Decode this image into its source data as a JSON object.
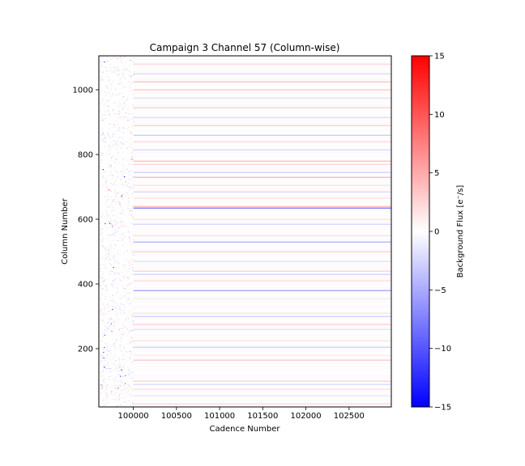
{
  "chart_data": {
    "type": "heatmap",
    "title": "Campaign 3 Channel 57 (Column-wise)",
    "xlabel": "Cadence Number",
    "ylabel": "Column Number",
    "xlim": [
      99600,
      102990
    ],
    "ylim": [
      20,
      1105
    ],
    "xticks": [
      100000,
      100500,
      101000,
      101500,
      102000,
      102500
    ],
    "yticks": [
      200,
      400,
      600,
      800,
      1000
    ],
    "noisy_segment_x": [
      99600,
      100000
    ],
    "colorbar": {
      "label": "Background Flux [e$^-$/s]",
      "label_display": "Background Flux [e⁻/s]",
      "range": [
        -15,
        15
      ],
      "ticks": [
        -15,
        -10,
        -5,
        0,
        5,
        10,
        15
      ],
      "colormap": [
        "#0000ff",
        "#ffffff",
        "#ff0000"
      ]
    },
    "strong_rows": [
      {
        "col": 30,
        "value": 2.5
      },
      {
        "col": 55,
        "value": -1.5
      },
      {
        "col": 75,
        "value": 2
      },
      {
        "col": 90,
        "value": -2.5
      },
      {
        "col": 100,
        "value": 3
      },
      {
        "col": 165,
        "value": 3.5
      },
      {
        "col": 180,
        "value": 1.5
      },
      {
        "col": 205,
        "value": -3
      },
      {
        "col": 225,
        "value": 2
      },
      {
        "col": 260,
        "value": -2
      },
      {
        "col": 275,
        "value": 3
      },
      {
        "col": 300,
        "value": -3
      },
      {
        "col": 310,
        "value": 2
      },
      {
        "col": 355,
        "value": 1.5
      },
      {
        "col": 380,
        "value": -6
      },
      {
        "col": 410,
        "value": 2.5
      },
      {
        "col": 430,
        "value": -3
      },
      {
        "col": 440,
        "value": 3
      },
      {
        "col": 470,
        "value": -2
      },
      {
        "col": 500,
        "value": 3
      },
      {
        "col": 530,
        "value": -5
      },
      {
        "col": 550,
        "value": 2
      },
      {
        "col": 585,
        "value": -3
      },
      {
        "col": 600,
        "value": 2
      },
      {
        "col": 635,
        "value": -9
      },
      {
        "col": 640,
        "value": 4
      },
      {
        "col": 665,
        "value": 2
      },
      {
        "col": 685,
        "value": -2.5
      },
      {
        "col": 705,
        "value": 2
      },
      {
        "col": 730,
        "value": 4.5
      },
      {
        "col": 745,
        "value": -3
      },
      {
        "col": 770,
        "value": 3
      },
      {
        "col": 780,
        "value": 4
      },
      {
        "col": 815,
        "value": -2.5
      },
      {
        "col": 840,
        "value": 2.5
      },
      {
        "col": 860,
        "value": -3.5
      },
      {
        "col": 890,
        "value": 3
      },
      {
        "col": 915,
        "value": -2.5
      },
      {
        "col": 945,
        "value": 3
      },
      {
        "col": 975,
        "value": -2
      },
      {
        "col": 1000,
        "value": 3.5
      },
      {
        "col": 1025,
        "value": 4
      },
      {
        "col": 1050,
        "value": -2.5
      },
      {
        "col": 1080,
        "value": 2.5
      }
    ]
  }
}
